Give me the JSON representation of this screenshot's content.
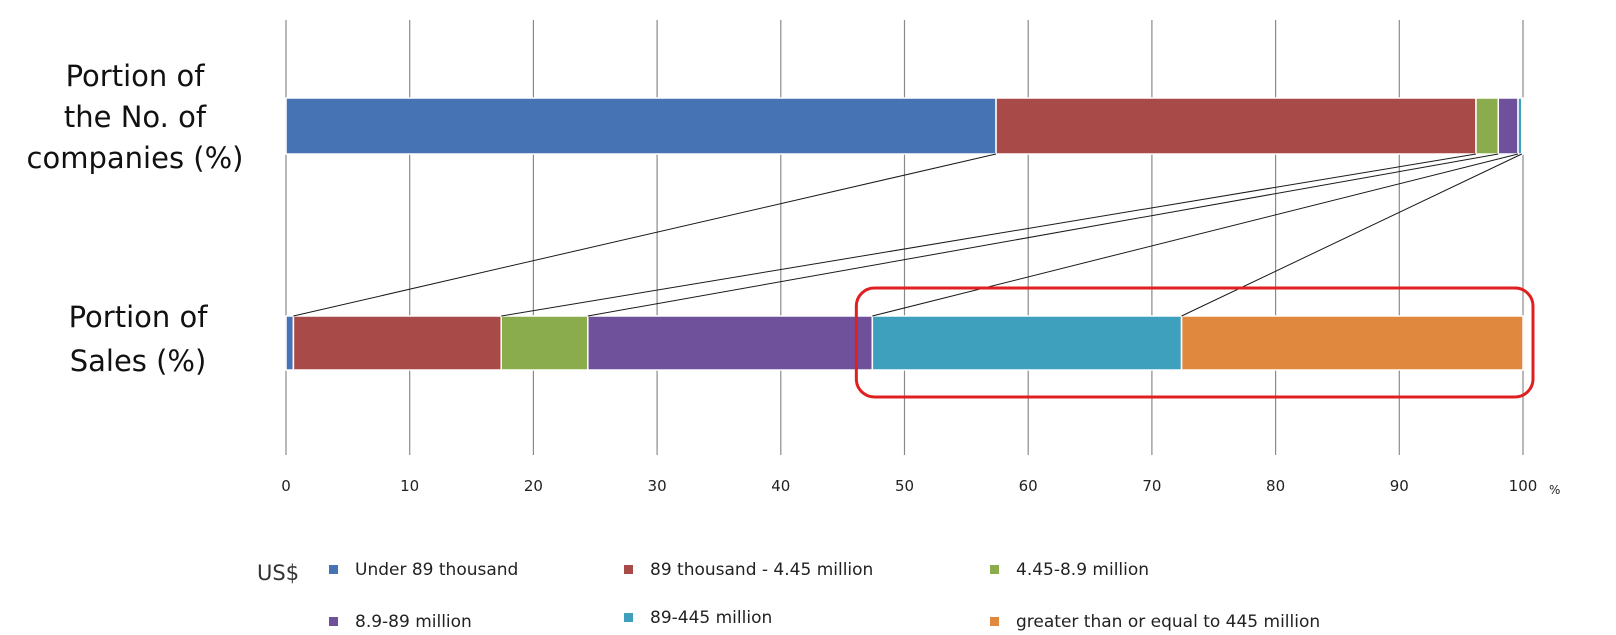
{
  "chart_data": {
    "type": "bar",
    "orientation": "horizontal",
    "stacked": true,
    "normalized_100": true,
    "categories": [
      "Portion of\nthe No. of\ncompanies (%)",
      "Portion of\nSales (%)"
    ],
    "series": [
      {
        "name": "Under 89 thousand",
        "color": "#4673b4",
        "values": [
          57.4,
          0.6
        ]
      },
      {
        "name": "89 thousand - 4.45 million",
        "color": "#a84a48",
        "values": [
          38.8,
          16.8
        ]
      },
      {
        "name": "4.45-8.9 million",
        "color": "#8bac4c",
        "values": [
          1.8,
          7.0
        ]
      },
      {
        "name": "8.9-89 million",
        "color": "#6e519a",
        "values": [
          1.6,
          23.0
        ]
      },
      {
        "name": "89-445 million",
        "color": "#3ea0bd",
        "values": [
          0.3,
          25.0
        ]
      },
      {
        "name": "greater than or equal to 445 million",
        "color": "#e0883d",
        "values": [
          0.1,
          27.6
        ]
      }
    ],
    "xlim": [
      0,
      100
    ],
    "xticks": [
      "0",
      "10",
      "20",
      "30",
      "40",
      "50",
      "60",
      "70",
      "80",
      "90",
      "100"
    ],
    "x_unit": "%",
    "grid": "vertical",
    "legend_prefix": "US$",
    "legend_position": "bottom",
    "connector_lines": true,
    "highlight": {
      "segments": [
        "89-445 million",
        "greater than or equal to 445 million"
      ],
      "color": "#e02020"
    }
  }
}
